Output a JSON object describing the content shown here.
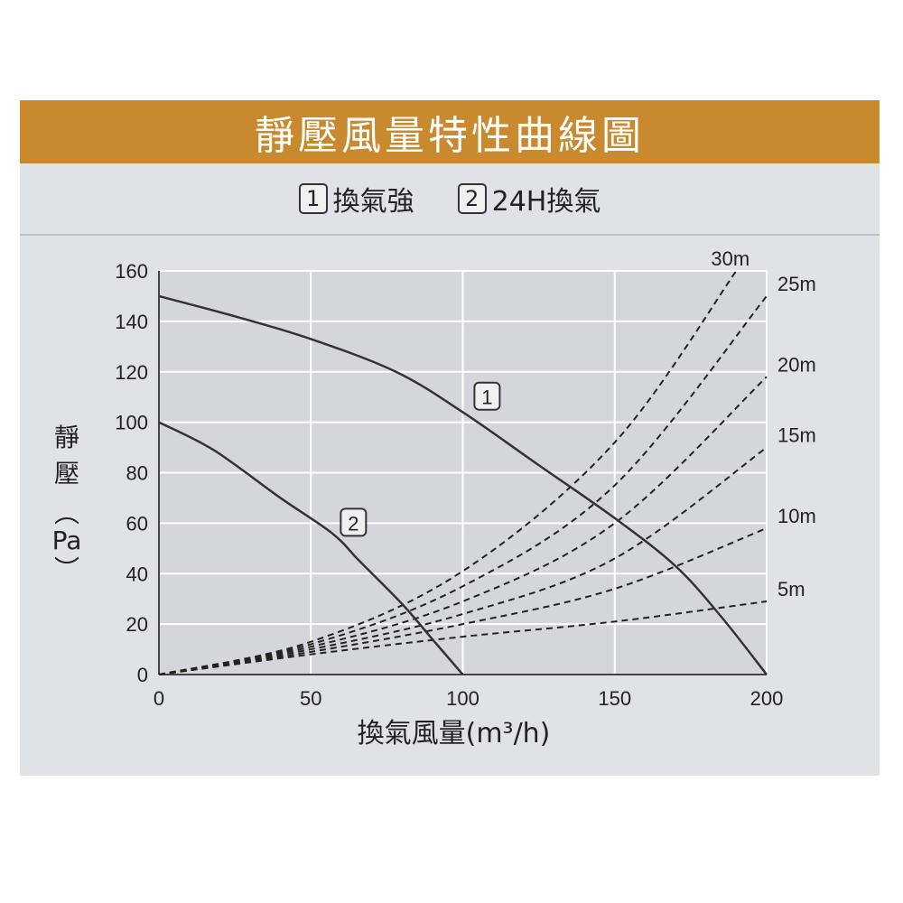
{
  "title": "靜壓風量特性曲線圖",
  "legend": [
    {
      "num": "1",
      "label": "換氣強"
    },
    {
      "num": "2",
      "label": "24H換氣"
    }
  ],
  "colors": {
    "title_bar": "#c8892f",
    "panel": "#dfe3e8",
    "curve": "#333333",
    "duct": "#222222",
    "grid": "#ffffff"
  },
  "chart_data": {
    "type": "line",
    "xlabel": "換氣風量(m³/h)",
    "ylabel_chars": [
      "靜",
      "壓",
      "︵",
      "Pa",
      "︶"
    ],
    "xlim": [
      0,
      200
    ],
    "ylim": [
      0,
      160
    ],
    "xticks": [
      0,
      50,
      100,
      150,
      200
    ],
    "yticks": [
      0,
      20,
      40,
      60,
      80,
      100,
      120,
      140,
      160
    ],
    "grid": true,
    "series": [
      {
        "name": "1",
        "style": "solid",
        "x": [
          0,
          25,
          50,
          78,
          100,
          125,
          150,
          170,
          185,
          200
        ],
        "y": [
          150,
          142,
          133,
          120,
          104,
          83,
          62,
          43,
          23,
          0
        ]
      },
      {
        "name": "2",
        "style": "solid",
        "x": [
          0,
          18,
          40,
          57,
          66,
          80,
          90,
          100
        ],
        "y": [
          100,
          89,
          70,
          56,
          45,
          28,
          14,
          0
        ]
      }
    ],
    "duct_curves": [
      {
        "name": "30m",
        "x": [
          0,
          50,
          100,
          150,
          190
        ],
        "y": [
          0,
          13,
          41,
          92,
          160
        ]
      },
      {
        "name": "25m",
        "x": [
          0,
          50,
          100,
          150,
          200
        ],
        "y": [
          0,
          12,
          35,
          75,
          150
        ]
      },
      {
        "name": "20m",
        "x": [
          0,
          50,
          100,
          150,
          200
        ],
        "y": [
          0,
          11,
          29,
          60,
          118
        ]
      },
      {
        "name": "15m",
        "x": [
          0,
          50,
          100,
          150,
          200
        ],
        "y": [
          0,
          10,
          24,
          46,
          90
        ]
      },
      {
        "name": "10m",
        "x": [
          0,
          50,
          100,
          150,
          200
        ],
        "y": [
          0,
          9,
          20,
          34,
          58
        ]
      },
      {
        "name": "5m",
        "x": [
          0,
          50,
          100,
          150,
          200
        ],
        "y": [
          0,
          8,
          15,
          21,
          29
        ]
      }
    ],
    "series_label_positions": [
      {
        "name": "1",
        "x": 108,
        "y": 110
      },
      {
        "name": "2",
        "x": 64,
        "y": 60
      }
    ]
  }
}
